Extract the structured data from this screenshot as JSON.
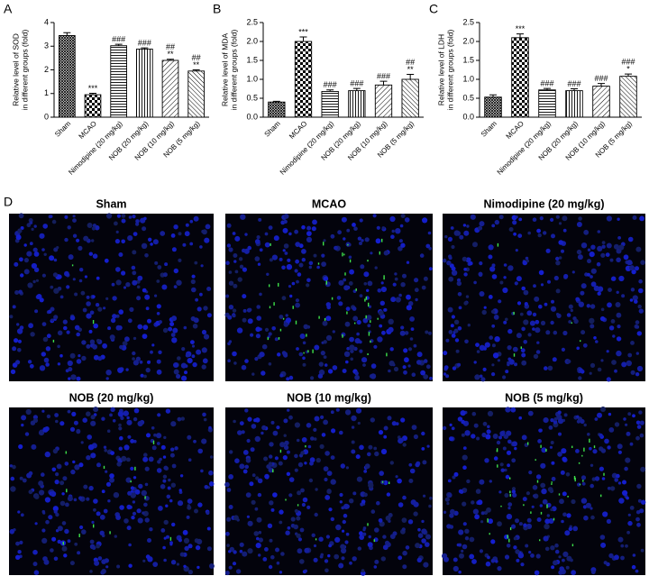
{
  "chart_data": [
    {
      "type": "bar",
      "panel": "A",
      "ylabel": [
        "Relative level of SOD",
        "in different groups (fold)"
      ],
      "categories": [
        "Sham",
        "MCAO",
        "Nimodipine (20 mg/kg)",
        "NOB (20 mg/kg)",
        "NOB (10 mg/kg)",
        "NOB (5 mg/kg)"
      ],
      "values": [
        3.45,
        0.95,
        3.02,
        2.88,
        2.4,
        1.95
      ],
      "errors": [
        0.12,
        0.06,
        0.06,
        0.05,
        0.05,
        0.05
      ],
      "annotations": [
        [],
        [
          "***"
        ],
        [
          "###"
        ],
        [
          "###"
        ],
        [
          "##",
          "**"
        ],
        [
          "##",
          "**"
        ]
      ],
      "ylim": [
        0,
        4
      ],
      "yticks": [
        0,
        1,
        2,
        3,
        4
      ]
    },
    {
      "type": "bar",
      "panel": "B",
      "ylabel": [
        "Relative level of MDA",
        "in different groups (fold)"
      ],
      "categories": [
        "Sham",
        "MCAO",
        "Nimodipine (20 mg/kg)",
        "NOB (20 mg/kg)",
        "NOB (10 mg/kg)",
        "NOB (5 mg/kg)"
      ],
      "values": [
        0.4,
        2.0,
        0.68,
        0.7,
        0.85,
        1.0
      ],
      "errors": [
        0.02,
        0.12,
        0.04,
        0.06,
        0.1,
        0.13
      ],
      "annotations": [
        [],
        [
          "***"
        ],
        [
          "###"
        ],
        [
          "###"
        ],
        [
          "###"
        ],
        [
          "##",
          "**"
        ]
      ],
      "ylim": [
        0,
        2.5
      ],
      "yticks": [
        {
          "value": 0,
          "label": "0.0"
        },
        0.5,
        {
          "value": 1,
          "label": "1.0"
        },
        1.5,
        {
          "value": 2,
          "label": "2.0"
        },
        2.5
      ]
    },
    {
      "type": "bar",
      "panel": "C",
      "ylabel": [
        "Relative level of LDH",
        "in different groups (fold)"
      ],
      "categories": [
        "Sham",
        "MCAO",
        "Nimodipine (20 mg/kg)",
        "NOB (20 mg/kg)",
        "NOB (10 mg/kg)",
        "NOB (5 mg/kg)"
      ],
      "values": [
        0.53,
        2.1,
        0.72,
        0.7,
        0.82,
        1.08
      ],
      "errors": [
        0.06,
        0.1,
        0.04,
        0.05,
        0.07,
        0.06
      ],
      "annotations": [
        [],
        [
          "***"
        ],
        [
          "###"
        ],
        [
          "###"
        ],
        [
          "###"
        ],
        [
          "###",
          "*"
        ]
      ],
      "ylim": [
        0,
        2.5
      ],
      "yticks": [
        {
          "value": 0,
          "label": "0.0"
        },
        0.5,
        {
          "value": 1,
          "label": "1.0"
        },
        1.5,
        {
          "value": 2,
          "label": "2.0"
        },
        2.5
      ]
    }
  ],
  "images": {
    "panel": "D",
    "titles": [
      "Sham",
      "MCAO",
      "Nimodipine (20 mg/kg)",
      "NOB (20 mg/kg)",
      "NOB (10 mg/kg)",
      "NOB (5 mg/kg)"
    ]
  }
}
